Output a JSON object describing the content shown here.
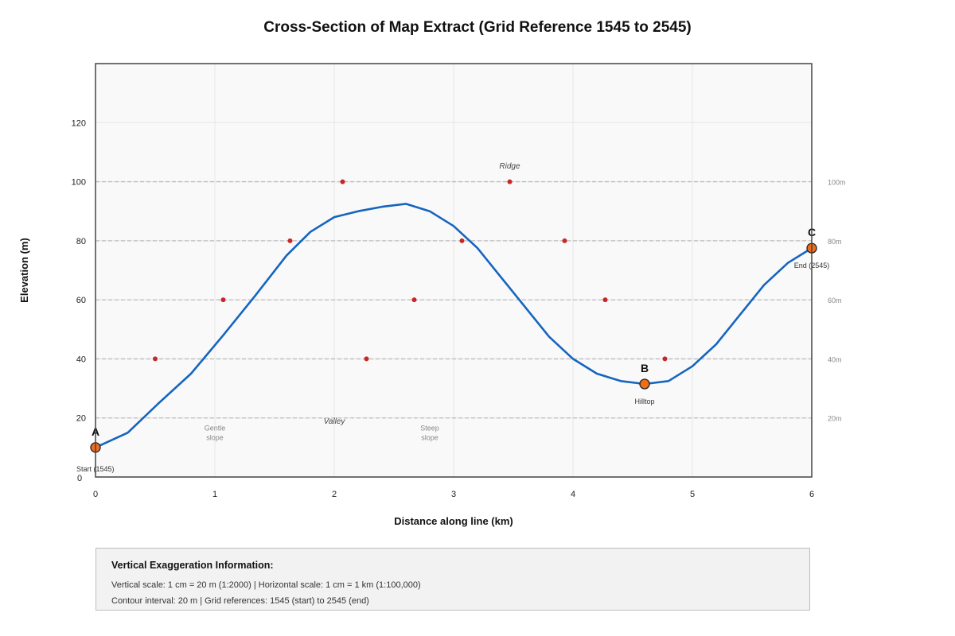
{
  "chart_data": {
    "type": "line",
    "title": "Cross-Section of Map Extract (Grid Reference 1545 to 2545)",
    "xlabel": "Distance along line (km)",
    "ylabel": "Elevation (m)",
    "xlim": [
      0,
      6
    ],
    "ylim": [
      0,
      140
    ],
    "x_ticks": [
      0,
      1,
      2,
      3,
      4,
      5,
      6
    ],
    "y_ticks": [
      0,
      20,
      40,
      60,
      80,
      100,
      120
    ],
    "right_tick_labels": [
      {
        "y": 20,
        "label": "20m"
      },
      {
        "y": 40,
        "label": "40m"
      },
      {
        "y": 60,
        "label": "60m"
      },
      {
        "y": 80,
        "label": "80m"
      },
      {
        "y": 100,
        "label": "100m"
      }
    ],
    "grid": true,
    "contour_lines": [
      20,
      40,
      60,
      80,
      100
    ],
    "series": [
      {
        "color": "#1565c0",
        "x": [
          0,
          0.27,
          0.53,
          0.8,
          1.07,
          1.33,
          1.6,
          1.8,
          2.0,
          2.2,
          2.4,
          2.6,
          2.8,
          3.0,
          3.2,
          3.4,
          3.6,
          3.8,
          4.0,
          4.2,
          4.4,
          4.6,
          4.8,
          5.0,
          5.2,
          5.4,
          5.6,
          5.8,
          6.0
        ],
        "y": [
          10,
          15,
          25,
          35,
          48,
          61,
          75,
          83,
          88,
          90,
          91.5,
          92.5,
          90,
          85,
          77.5,
          67.5,
          57.5,
          47.5,
          40,
          35,
          32.5,
          31.5,
          32.5,
          37.5,
          45,
          55,
          65,
          72.5,
          77.5
        ]
      }
    ],
    "contour_crossings": [
      {
        "x": 0.5,
        "y": 40
      },
      {
        "x": 1.07,
        "y": 60
      },
      {
        "x": 1.63,
        "y": 80
      },
      {
        "x": 2.07,
        "y": 100
      },
      {
        "x": 2.27,
        "y": 40
      },
      {
        "x": 2.67,
        "y": 60
      },
      {
        "x": 3.07,
        "y": 80
      },
      {
        "x": 3.47,
        "y": 100
      },
      {
        "x": 3.93,
        "y": 80
      },
      {
        "x": 4.27,
        "y": 60
      },
      {
        "x": 4.77,
        "y": 40
      }
    ],
    "key_points": [
      {
        "label": "A",
        "note": "Start (1545)",
        "x": 0,
        "y": 10
      },
      {
        "label": "B",
        "note": "Hilltop",
        "x": 4.6,
        "y": 31.5
      },
      {
        "label": "C",
        "note": "End (2545)",
        "x": 6.0,
        "y": 77.5
      }
    ],
    "annotations": [
      {
        "text": "Ridge",
        "x": 3.47,
        "y": 104.5,
        "style": "italic"
      },
      {
        "text": "Valley",
        "x": 2.0,
        "y": 18,
        "style": "italic"
      },
      {
        "text": [
          "Gentle",
          "slope"
        ],
        "x": 1.0,
        "y": 13,
        "style": "gray"
      },
      {
        "text": [
          "Steep",
          "slope"
        ],
        "x": 2.8,
        "y": 13,
        "style": "gray"
      }
    ]
  },
  "info": {
    "title": "Vertical Exaggeration Information:",
    "lines": [
      "Vertical scale: 1 cm = 20 m (1:2000) | Horizontal scale: 1 cm = 1 km (1:100,000)",
      "Contour interval: 20 m | Grid references: 1545 (start) to 2545 (end)"
    ]
  }
}
